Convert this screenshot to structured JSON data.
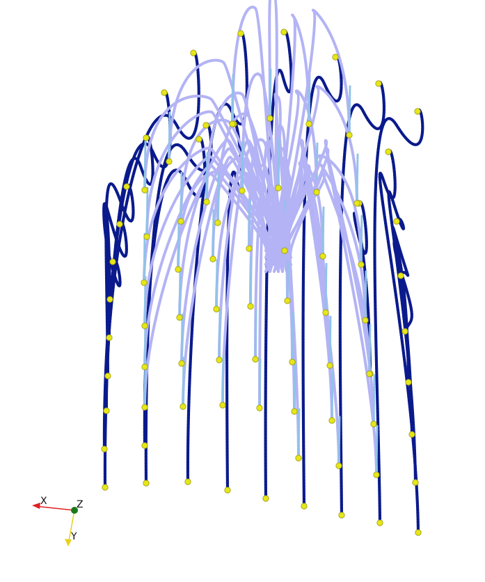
{
  "scene": {
    "background": "#ffffff",
    "colors": {
      "outer_strand": "#0a1a8c",
      "inner_strand": "#b3b3f5",
      "inner_accent": "#8fc3e8",
      "endpoint": "#e6e619",
      "endpoint_edge": "#9a9a10"
    }
  },
  "axes_triad": {
    "x_label": "X",
    "y_label": "Y",
    "z_label": "Z",
    "x_color": "#e02020",
    "y_color": "#e6d21a",
    "z_color": "#1a7a1a"
  }
}
